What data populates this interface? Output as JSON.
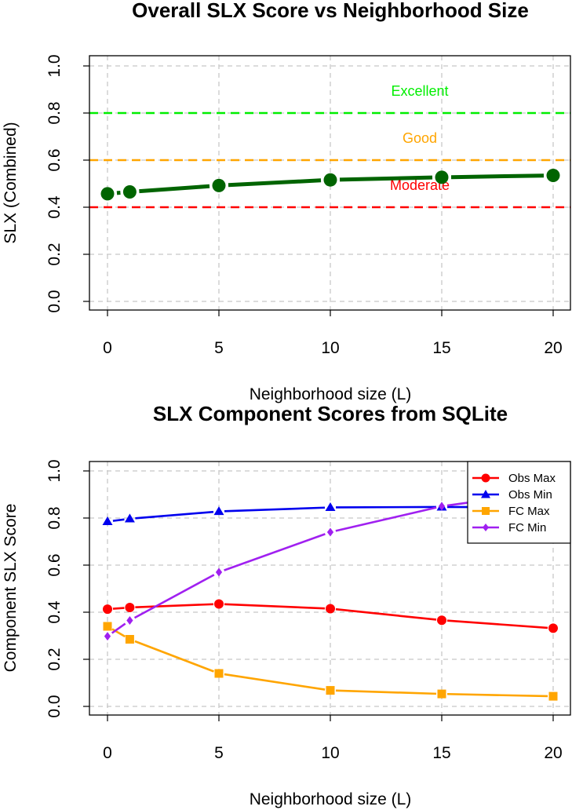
{
  "chart_data": [
    {
      "type": "line",
      "title": "Overall SLX Score vs Neighborhood Size",
      "xlabel": "Neighborhood size (L)",
      "ylabel": "SLX (Combined)",
      "xlim": [
        0,
        20
      ],
      "ylim": [
        0.0,
        1.0
      ],
      "xticks": [
        "0",
        "5",
        "10",
        "15",
        "20"
      ],
      "yticks": [
        "0.0",
        "0.2",
        "0.4",
        "0.6",
        "0.8",
        "1.0"
      ],
      "grid": true,
      "series": [
        {
          "color": "#006400",
          "x": [
            0,
            1,
            5,
            10,
            15,
            20
          ],
          "values": [
            0.457,
            0.465,
            0.492,
            0.516,
            0.527,
            0.535
          ]
        }
      ],
      "reference_lines": [
        {
          "label": "Excellent",
          "y": 0.8,
          "color": "#00ee00"
        },
        {
          "label": "Good",
          "y": 0.6,
          "color": "#ffa500"
        },
        {
          "label": "Moderate",
          "y": 0.4,
          "color": "#ff0000"
        }
      ]
    },
    {
      "type": "line",
      "title": "SLX Component Scores from SQLite",
      "xlabel": "Neighborhood size (L)",
      "ylabel": "Component SLX Score",
      "xlim": [
        0,
        20
      ],
      "ylim": [
        0.0,
        1.0
      ],
      "xticks": [
        "0",
        "5",
        "10",
        "15",
        "20"
      ],
      "yticks": [
        "0.0",
        "0.2",
        "0.4",
        "0.6",
        "0.8",
        "1.0"
      ],
      "grid": true,
      "legend_position": "top-right",
      "series": [
        {
          "name": "Obs Max",
          "color": "#ff0000",
          "marker": "circle",
          "x": [
            0,
            1,
            5,
            10,
            15,
            20
          ],
          "values": [
            0.413,
            0.42,
            0.435,
            0.415,
            0.366,
            0.332
          ]
        },
        {
          "name": "Obs Min",
          "color": "#0000ee",
          "marker": "triangle",
          "x": [
            0,
            1,
            5,
            10,
            15,
            20
          ],
          "values": [
            0.785,
            0.797,
            0.828,
            0.845,
            0.847,
            0.845
          ]
        },
        {
          "name": "FC Max",
          "color": "#ffa500",
          "marker": "square",
          "x": [
            0,
            1,
            5,
            10,
            15,
            20
          ],
          "values": [
            0.34,
            0.285,
            0.14,
            0.068,
            0.053,
            0.043
          ]
        },
        {
          "name": "FC Min",
          "color": "#a020f0",
          "marker": "diamond",
          "x": [
            0,
            1,
            5,
            10,
            15,
            20
          ],
          "values": [
            0.298,
            0.365,
            0.57,
            0.74,
            0.85,
            0.915
          ]
        }
      ]
    }
  ]
}
